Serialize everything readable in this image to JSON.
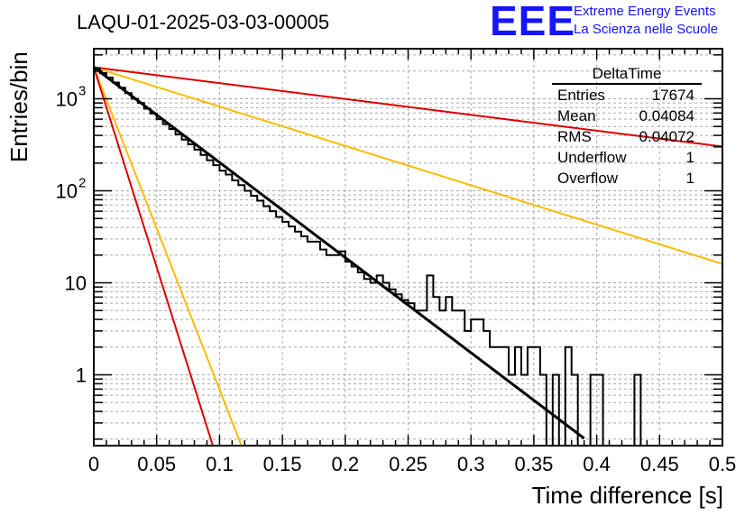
{
  "header": {
    "run_title": "LAQU-01-2025-03-03-00005",
    "logo_text": "EEE",
    "logo_line1": "Extreme Energy Events",
    "logo_line2": "La Scienza nelle Scuole"
  },
  "statbox": {
    "title": "DeltaTime",
    "rows": [
      {
        "label": "Entries",
        "value": "17674"
      },
      {
        "label": "Mean",
        "value": "0.04084"
      },
      {
        "label": "RMS",
        "value": "0.04072"
      },
      {
        "label": "Underflow",
        "value": "1"
      },
      {
        "label": "Overflow",
        "value": "1"
      }
    ]
  },
  "colors": {
    "histogram": "#000000",
    "fit": "#000000",
    "red": "#dd0000",
    "yellow": "#ffbb00",
    "grid": "#a8a8a8"
  },
  "chart_data": {
    "type": "histogram",
    "title": "LAQU-01-2025-03-03-00005",
    "xlabel": "Time difference [s]",
    "ylabel": "Entries/bin",
    "xlim": [
      0,
      0.5
    ],
    "ylim": [
      0.17,
      3500
    ],
    "yscale": "log",
    "grid": true,
    "legend_placement": "top-right",
    "bin_width": 0.005,
    "x_ticks": [
      "0",
      "0.05",
      "0.1",
      "0.15",
      "0.2",
      "0.25",
      "0.3",
      "0.35",
      "0.4",
      "0.45",
      "0.5"
    ],
    "x_tick_values": [
      0,
      0.05,
      0.1,
      0.15,
      0.2,
      0.25,
      0.3,
      0.35,
      0.4,
      0.45,
      0.5
    ],
    "y_ticks": [
      {
        "value": 1,
        "label": "1",
        "sup": ""
      },
      {
        "value": 10,
        "label": "10",
        "sup": ""
      },
      {
        "value": 100,
        "label": "10",
        "sup": "2"
      },
      {
        "value": 1000,
        "label": "10",
        "sup": "3"
      }
    ],
    "histogram": [
      2150,
      1900,
      1700,
      1500,
      1320,
      1150,
      1000,
      900,
      780,
      690,
      600,
      530,
      470,
      410,
      360,
      320,
      280,
      245,
      215,
      190,
      165,
      150,
      130,
      115,
      100,
      88,
      78,
      68,
      60,
      52,
      46,
      41,
      36,
      32,
      28,
      28,
      23,
      20,
      20,
      22,
      17,
      15,
      13,
      11,
      10,
      12,
      10,
      8.5,
      7.5,
      6.5,
      6,
      5,
      5,
      12,
      7,
      5,
      7,
      5,
      5,
      3,
      4,
      4,
      3,
      2,
      2,
      2,
      1,
      2,
      1,
      2,
      2,
      1,
      0,
      1,
      0,
      2,
      1,
      0,
      0,
      1,
      1,
      0,
      0,
      0,
      0,
      0,
      1,
      0,
      0,
      0,
      0,
      0,
      0,
      0,
      0,
      0,
      0,
      0,
      0,
      0
    ],
    "fit": {
      "name": "black exponential fit",
      "n0": 2200,
      "tau": 0.042,
      "x_end": 0.39
    },
    "reference_curves": [
      {
        "name": "red slow",
        "color": "red",
        "n0": 2200,
        "tau": 0.252
      },
      {
        "name": "yellow slow",
        "color": "yellow",
        "n0": 2200,
        "tau": 0.1016
      },
      {
        "name": "yellow fast",
        "color": "yellow",
        "n0": 2200,
        "tau": 0.0124
      },
      {
        "name": "red fast",
        "color": "red",
        "n0": 2200,
        "tau": 0.01
      }
    ]
  }
}
